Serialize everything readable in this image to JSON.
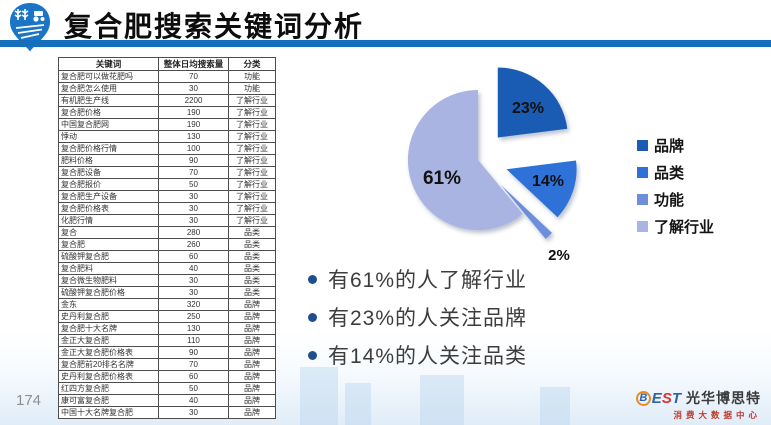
{
  "slide": {
    "title": "复合肥搜索关键词分析",
    "page_number": "174"
  },
  "theme": {
    "header_bar_color": "#1470bd",
    "logo_color": "#1b74c4",
    "bullet_color": "#1f4e8c"
  },
  "table": {
    "columns": [
      "关键词",
      "整体日均搜索量",
      "分类"
    ],
    "rows": [
      [
        "复合肥可以做花肥吗",
        "70",
        "功能"
      ],
      [
        "复合肥怎么使用",
        "30",
        "功能"
      ],
      [
        "有机肥生产线",
        "2200",
        "了解行业"
      ],
      [
        "复合肥价格",
        "190",
        "了解行业"
      ],
      [
        "中国复合肥网",
        "190",
        "了解行业"
      ],
      [
        "悸动",
        "130",
        "了解行业"
      ],
      [
        "复合肥价格行情",
        "100",
        "了解行业"
      ],
      [
        "肥料价格",
        "90",
        "了解行业"
      ],
      [
        "复合肥设备",
        "70",
        "了解行业"
      ],
      [
        "复合肥报价",
        "50",
        "了解行业"
      ],
      [
        "复合肥生产设备",
        "30",
        "了解行业"
      ],
      [
        "复合肥价格表",
        "30",
        "了解行业"
      ],
      [
        "化肥行情",
        "30",
        "了解行业"
      ],
      [
        "复合",
        "280",
        "品类"
      ],
      [
        "复合肥",
        "260",
        "品类"
      ],
      [
        "硫酸钾复合肥",
        "60",
        "品类"
      ],
      [
        "复合肥料",
        "40",
        "品类"
      ],
      [
        "复合微生物肥料",
        "30",
        "品类"
      ],
      [
        "硫酸钾复合肥价格",
        "30",
        "品类"
      ],
      [
        "金东",
        "320",
        "品牌"
      ],
      [
        "史丹利复合肥",
        "250",
        "品牌"
      ],
      [
        "复合肥十大名牌",
        "130",
        "品牌"
      ],
      [
        "金正大复合肥",
        "110",
        "品牌"
      ],
      [
        "金正大复合肥价格表",
        "90",
        "品牌"
      ],
      [
        "复合肥前20排名名牌",
        "70",
        "品牌"
      ],
      [
        "史丹利复合肥价格表",
        "60",
        "品牌"
      ],
      [
        "红四方复合肥",
        "50",
        "品牌"
      ],
      [
        "康可富复合肥",
        "40",
        "品牌"
      ],
      [
        "中国十大名牌复合肥",
        "30",
        "品牌"
      ]
    ]
  },
  "chart_data": {
    "type": "pie",
    "title": "",
    "labels": [
      "品牌",
      "品类",
      "功能",
      "了解行业"
    ],
    "values": [
      23,
      14,
      2,
      61
    ],
    "slice_labels": [
      "23%",
      "14%",
      "2%",
      "61%"
    ],
    "colors": [
      "#1a5cb4",
      "#2e72d8",
      "#6c8edc",
      "#a9b4e2"
    ],
    "legend_position": "right",
    "exploded": [
      true,
      true,
      true,
      false
    ]
  },
  "insights": {
    "bullets": [
      "有61%的人了解行业",
      "有23%的人关注品牌",
      "有14%的人关注品类"
    ]
  },
  "footer": {
    "brand_letters": [
      {
        "ch": "B",
        "color": "#2a62ae",
        "circled": true
      },
      {
        "ch": "E",
        "color": "#2a62ae",
        "circled": false
      },
      {
        "ch": "S",
        "color": "#d6372e",
        "circled": false
      },
      {
        "ch": "T",
        "color": "#2a62ae",
        "circled": false
      }
    ],
    "brand_name": "光华博思特",
    "brand_subtitle": "消费大数据中心"
  }
}
